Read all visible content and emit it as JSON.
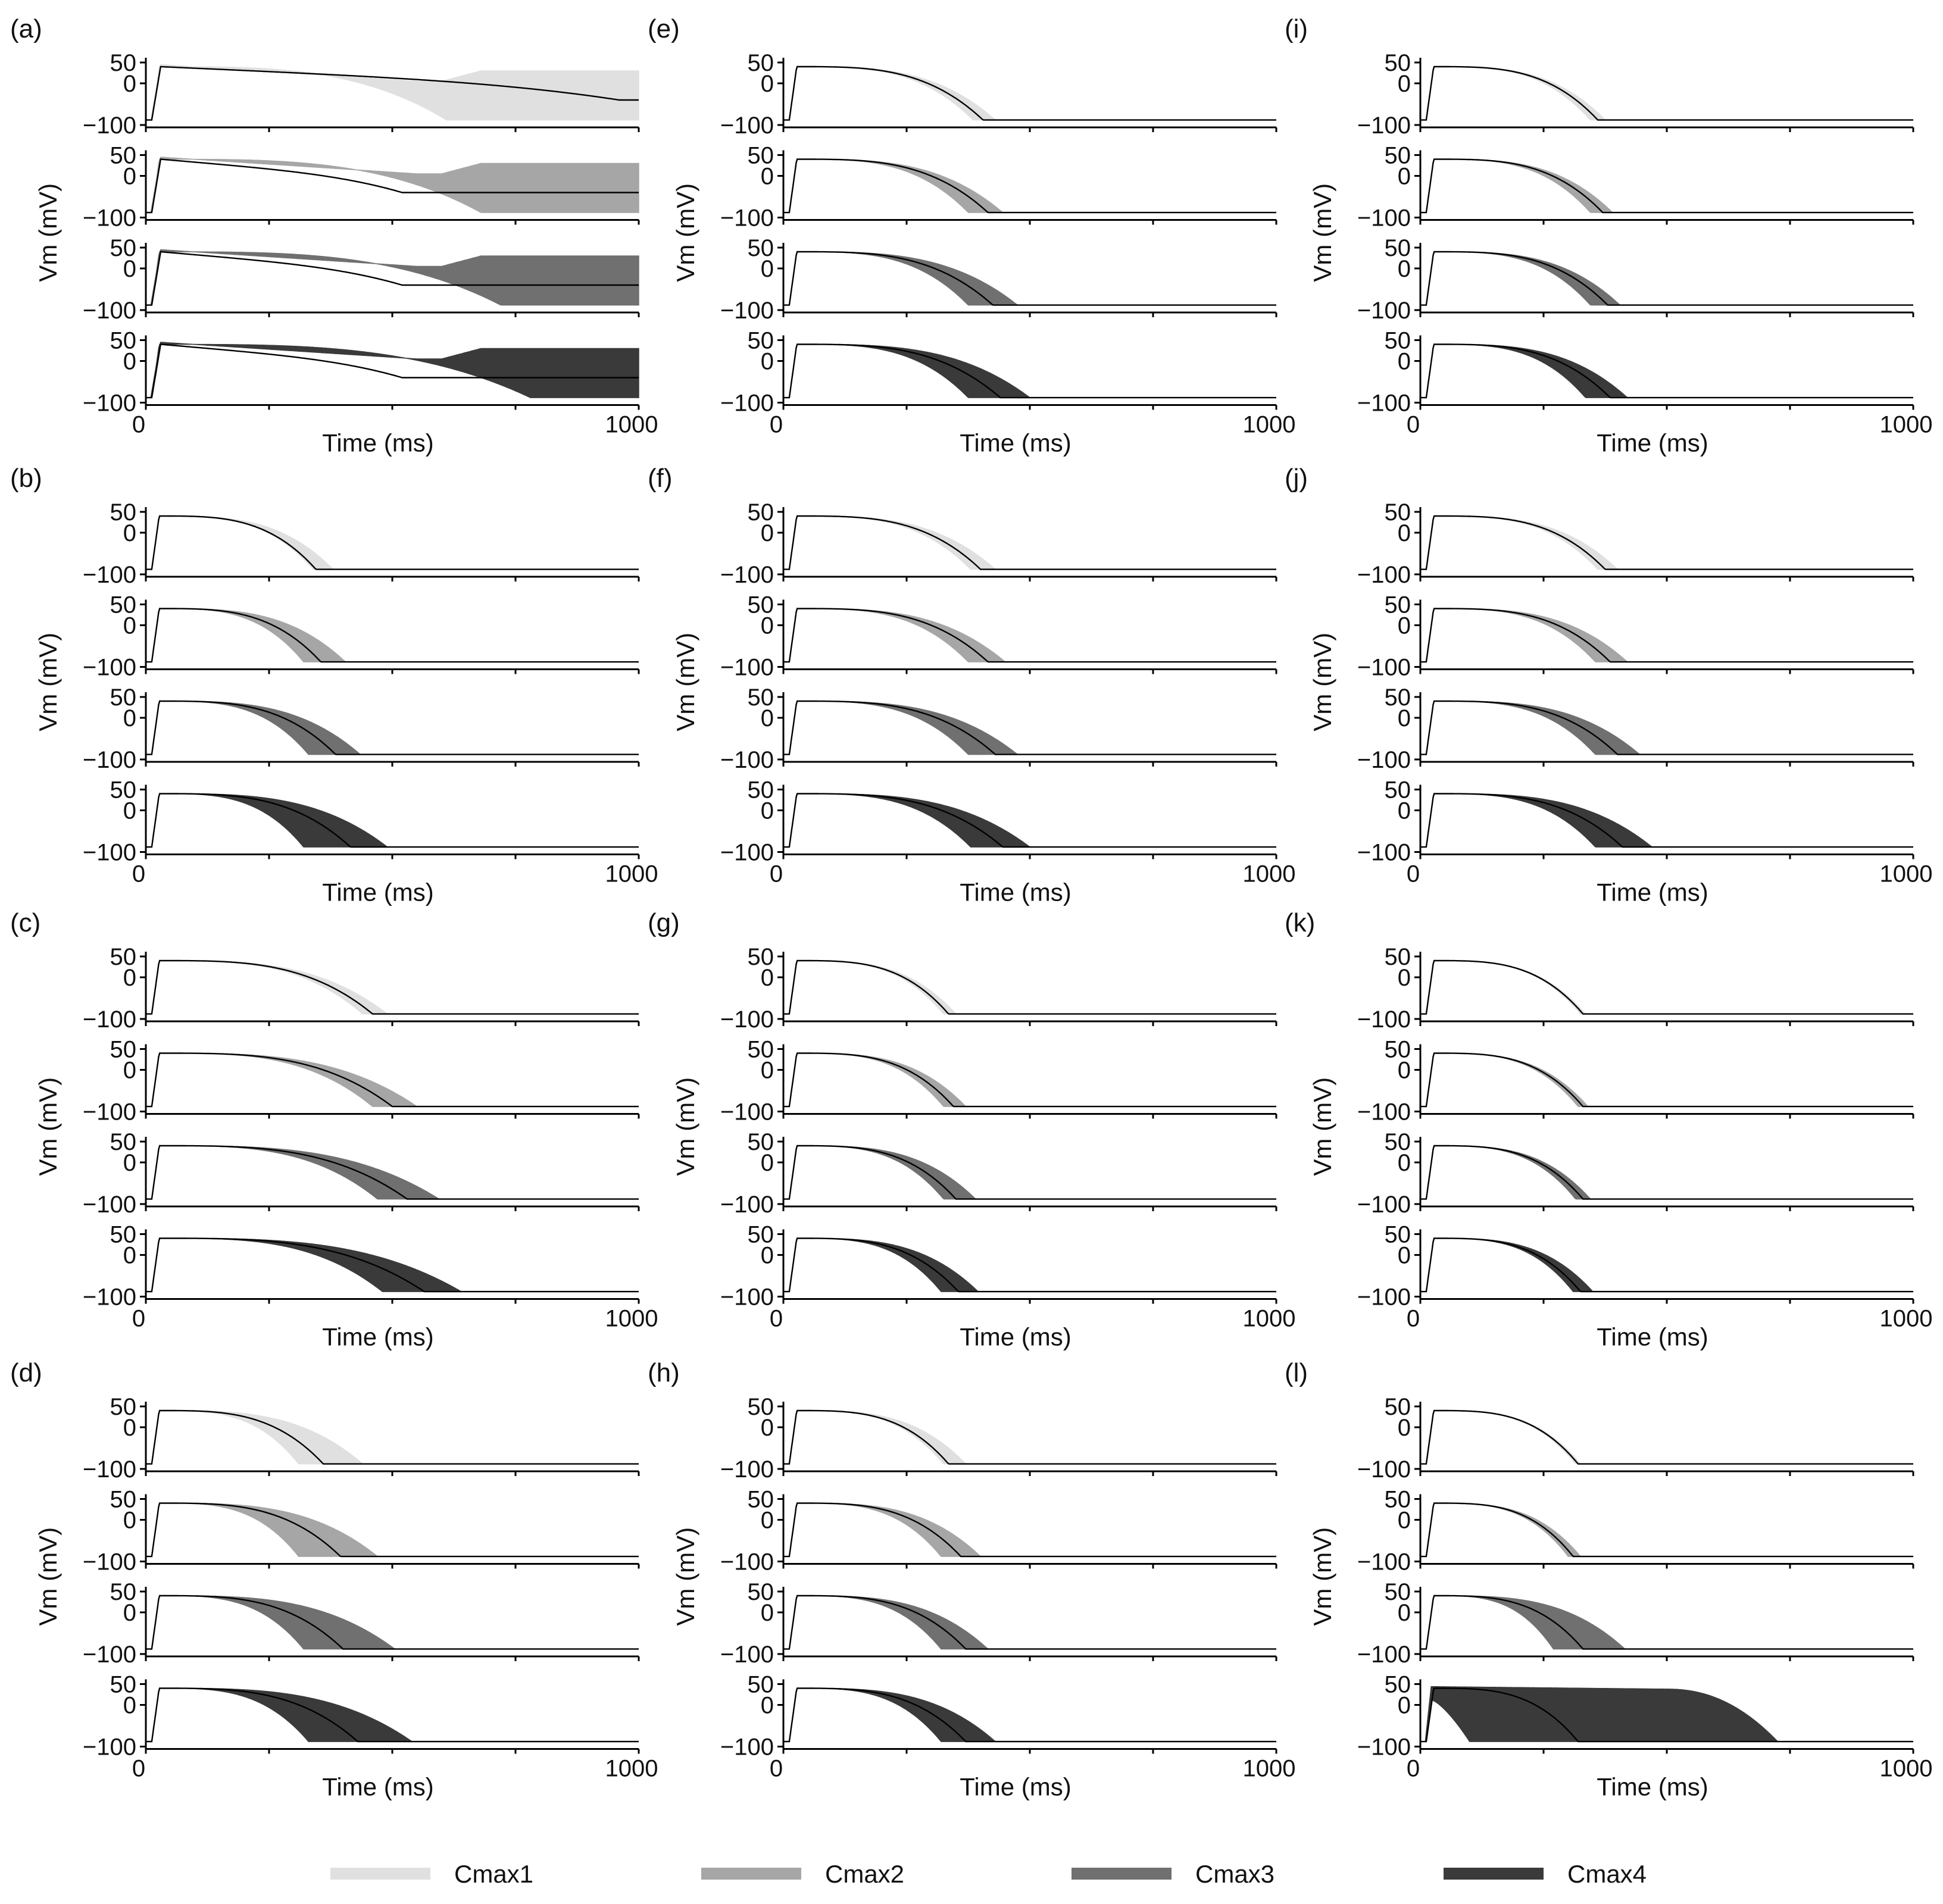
{
  "chart_data": {
    "type": "line",
    "description_units": {
      "x": "ms",
      "y": "mV"
    },
    "x_label": "Time (ms)",
    "y_label": "Vm (mV)",
    "x_ticks": [
      "0",
      "1000"
    ],
    "y_ticks": [
      "50",
      "0",
      "−100"
    ],
    "xlim": [
      0,
      1000
    ],
    "ylim": [
      -100,
      50
    ],
    "legend": {
      "position": "bottom",
      "items": [
        {
          "label": "Cmax1",
          "color": "#e0e0e0"
        },
        {
          "label": "Cmax2",
          "color": "#a6a6a6"
        },
        {
          "label": "Cmax3",
          "color": "#707070"
        },
        {
          "label": "Cmax4",
          "color": "#3a3a3a"
        }
      ]
    },
    "series_colors": [
      "#e0e0e0",
      "#a6a6a6",
      "#707070",
      "#3a3a3a"
    ],
    "line_color": "#000000",
    "panels": [
      {
        "id": "a",
        "letter": "(a)",
        "series": [
          {
            "name": "Cmax1",
            "mode": "ead",
            "lo_end": 610,
            "hi_end": 760,
            "median_end": 960
          },
          {
            "name": "Cmax2",
            "mode": "ead",
            "lo_end": 680,
            "hi_end": 400,
            "median_end": 2000
          },
          {
            "name": "Cmax3",
            "mode": "ead",
            "lo_end": 720,
            "hi_end": 420,
            "median_end": 2000
          },
          {
            "name": "Cmax4",
            "mode": "ead",
            "lo_end": 780,
            "hi_end": 440,
            "median_end": 2000
          }
        ]
      },
      {
        "id": "b",
        "letter": "(b)",
        "series": [
          {
            "name": "Cmax1",
            "mode": "band",
            "lo_end": 340,
            "median_end": 345,
            "hi_end": 380
          },
          {
            "name": "Cmax2",
            "mode": "band",
            "lo_end": 320,
            "median_end": 355,
            "hi_end": 405
          },
          {
            "name": "Cmax3",
            "mode": "band",
            "lo_end": 330,
            "median_end": 385,
            "hi_end": 435
          },
          {
            "name": "Cmax4",
            "mode": "band",
            "lo_end": 320,
            "median_end": 415,
            "hi_end": 490
          }
        ]
      },
      {
        "id": "c",
        "letter": "(c)",
        "series": [
          {
            "name": "Cmax1",
            "mode": "band",
            "lo_end": 440,
            "median_end": 460,
            "hi_end": 490
          },
          {
            "name": "Cmax2",
            "mode": "band",
            "lo_end": 460,
            "median_end": 500,
            "hi_end": 550
          },
          {
            "name": "Cmax3",
            "mode": "band",
            "lo_end": 470,
            "median_end": 530,
            "hi_end": 595
          },
          {
            "name": "Cmax4",
            "mode": "band",
            "lo_end": 480,
            "median_end": 565,
            "hi_end": 640
          }
        ]
      },
      {
        "id": "d",
        "letter": "(d)",
        "series": [
          {
            "name": "Cmax1",
            "mode": "band",
            "lo_end": 310,
            "median_end": 360,
            "hi_end": 440
          },
          {
            "name": "Cmax2",
            "mode": "band",
            "lo_end": 310,
            "median_end": 395,
            "hi_end": 470
          },
          {
            "name": "Cmax3",
            "mode": "band",
            "lo_end": 320,
            "median_end": 400,
            "hi_end": 505
          },
          {
            "name": "Cmax4",
            "mode": "band",
            "lo_end": 330,
            "median_end": 430,
            "hi_end": 540
          }
        ]
      },
      {
        "id": "e",
        "letter": "(e)",
        "series": [
          {
            "name": "Cmax1",
            "mode": "band",
            "lo_end": 385,
            "median_end": 405,
            "hi_end": 430
          },
          {
            "name": "Cmax2",
            "mode": "band",
            "lo_end": 375,
            "median_end": 415,
            "hi_end": 445
          },
          {
            "name": "Cmax3",
            "mode": "band",
            "lo_end": 375,
            "median_end": 425,
            "hi_end": 475
          },
          {
            "name": "Cmax4",
            "mode": "band",
            "lo_end": 375,
            "median_end": 440,
            "hi_end": 500
          }
        ]
      },
      {
        "id": "f",
        "letter": "(f)",
        "series": [
          {
            "name": "Cmax1",
            "mode": "band",
            "lo_end": 380,
            "median_end": 400,
            "hi_end": 430
          },
          {
            "name": "Cmax2",
            "mode": "band",
            "lo_end": 375,
            "median_end": 415,
            "hi_end": 450
          },
          {
            "name": "Cmax3",
            "mode": "band",
            "lo_end": 375,
            "median_end": 430,
            "hi_end": 475
          },
          {
            "name": "Cmax4",
            "mode": "band",
            "lo_end": 380,
            "median_end": 445,
            "hi_end": 500
          }
        ]
      },
      {
        "id": "g",
        "letter": "(g)",
        "series": [
          {
            "name": "Cmax1",
            "mode": "band",
            "lo_end": 325,
            "median_end": 335,
            "hi_end": 350
          },
          {
            "name": "Cmax2",
            "mode": "band",
            "lo_end": 325,
            "median_end": 345,
            "hi_end": 370
          },
          {
            "name": "Cmax3",
            "mode": "band",
            "lo_end": 325,
            "median_end": 350,
            "hi_end": 390
          },
          {
            "name": "Cmax4",
            "mode": "band",
            "lo_end": 320,
            "median_end": 355,
            "hi_end": 395
          }
        ]
      },
      {
        "id": "h",
        "letter": "(h)",
        "series": [
          {
            "name": "Cmax1",
            "mode": "band",
            "lo_end": 325,
            "median_end": 335,
            "hi_end": 370
          },
          {
            "name": "Cmax2",
            "mode": "band",
            "lo_end": 320,
            "median_end": 360,
            "hi_end": 400
          },
          {
            "name": "Cmax3",
            "mode": "band",
            "lo_end": 320,
            "median_end": 370,
            "hi_end": 415
          },
          {
            "name": "Cmax4",
            "mode": "band",
            "lo_end": 320,
            "median_end": 370,
            "hi_end": 430
          }
        ]
      },
      {
        "id": "i",
        "letter": "(i)",
        "series": [
          {
            "name": "Cmax1",
            "mode": "band",
            "lo_end": 345,
            "median_end": 360,
            "hi_end": 375
          },
          {
            "name": "Cmax2",
            "mode": "band",
            "lo_end": 345,
            "median_end": 370,
            "hi_end": 390
          },
          {
            "name": "Cmax3",
            "mode": "band",
            "lo_end": 345,
            "median_end": 380,
            "hi_end": 405
          },
          {
            "name": "Cmax4",
            "mode": "band",
            "lo_end": 335,
            "median_end": 385,
            "hi_end": 420
          }
        ]
      },
      {
        "id": "j",
        "letter": "(j)",
        "series": [
          {
            "name": "Cmax1",
            "mode": "band",
            "lo_end": 360,
            "median_end": 375,
            "hi_end": 400
          },
          {
            "name": "Cmax2",
            "mode": "band",
            "lo_end": 355,
            "median_end": 385,
            "hi_end": 420
          },
          {
            "name": "Cmax3",
            "mode": "band",
            "lo_end": 355,
            "median_end": 400,
            "hi_end": 445
          },
          {
            "name": "Cmax4",
            "mode": "band",
            "lo_end": 355,
            "median_end": 410,
            "hi_end": 470
          }
        ]
      },
      {
        "id": "k",
        "letter": "(k)",
        "series": [
          {
            "name": "Cmax1",
            "mode": "band",
            "lo_end": 325,
            "median_end": 330,
            "hi_end": 335
          },
          {
            "name": "Cmax2",
            "mode": "band",
            "lo_end": 320,
            "median_end": 330,
            "hi_end": 340
          },
          {
            "name": "Cmax3",
            "mode": "band",
            "lo_end": 315,
            "median_end": 330,
            "hi_end": 345
          },
          {
            "name": "Cmax4",
            "mode": "band",
            "lo_end": 310,
            "median_end": 325,
            "hi_end": 350
          }
        ]
      },
      {
        "id": "l",
        "letter": "(l)",
        "series": [
          {
            "name": "Cmax1",
            "mode": "band",
            "lo_end": 315,
            "median_end": 320,
            "hi_end": 325
          },
          {
            "name": "Cmax2",
            "mode": "band",
            "lo_end": 300,
            "median_end": 310,
            "hi_end": 325
          },
          {
            "name": "Cmax3",
            "mode": "band",
            "lo_end": 270,
            "median_end": 330,
            "hi_end": 415
          },
          {
            "name": "Cmax4",
            "mode": "collapse",
            "lo_end": 100,
            "median_end": 320,
            "hi_end": 725
          }
        ]
      }
    ]
  }
}
